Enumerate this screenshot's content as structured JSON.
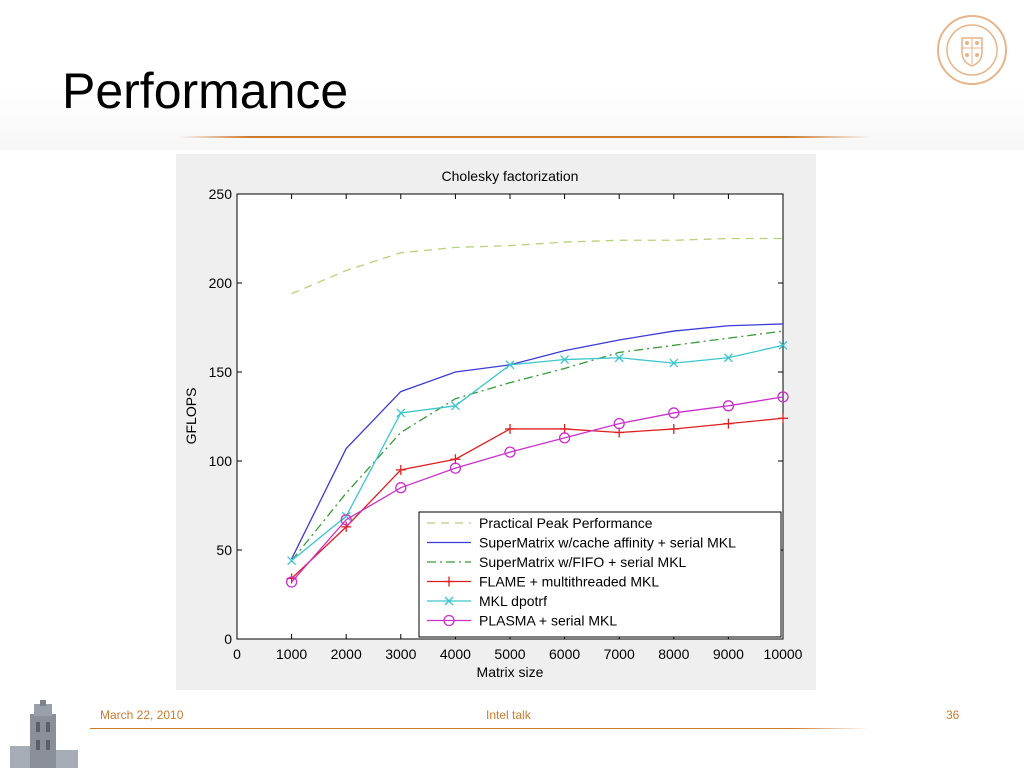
{
  "slide": {
    "title": "Performance",
    "footer_date": "March 22, 2010",
    "footer_center": "Intel talk",
    "page_number": "36",
    "logo_icon": "university-seal-icon",
    "tower_icon": "tower-image-icon",
    "accent_color": "#cc7a2e"
  },
  "chart_data": {
    "type": "line",
    "title": "Cholesky factorization",
    "xlabel": "Matrix size",
    "ylabel": "GFLOPS",
    "xlim": [
      0,
      10000
    ],
    "ylim": [
      0,
      250
    ],
    "xticks": [
      0,
      1000,
      2000,
      3000,
      4000,
      5000,
      6000,
      7000,
      8000,
      9000,
      10000
    ],
    "yticks": [
      0,
      50,
      100,
      150,
      200,
      250
    ],
    "grid": false,
    "legend_position": "bottom-right",
    "x": [
      1000,
      2000,
      3000,
      4000,
      5000,
      6000,
      7000,
      8000,
      9000,
      10000
    ],
    "series": [
      {
        "name": "Practical Peak Performance",
        "color": "#b5d27a",
        "dash": "8,6",
        "marker": "none",
        "values": [
          194,
          207,
          217,
          220,
          221,
          223,
          224,
          224,
          225,
          225
        ]
      },
      {
        "name": "SuperMatrix w/cache affinity + serial MKL",
        "color": "#3b3bd6",
        "dash": "",
        "marker": "none",
        "values": [
          45,
          107,
          139,
          150,
          154,
          162,
          168,
          173,
          176,
          177
        ]
      },
      {
        "name": "SuperMatrix w/FIFO + serial MKL",
        "color": "#3a9a3a",
        "dash": "9,4,2,4",
        "marker": "none",
        "values": [
          44,
          82,
          116,
          135,
          144,
          152,
          161,
          165,
          169,
          173
        ]
      },
      {
        "name": "FLAME + multithreaded MKL",
        "color": "#e02020",
        "dash": "",
        "marker": "plus",
        "values": [
          34,
          63,
          95,
          101,
          118,
          118,
          116,
          118,
          121,
          124
        ]
      },
      {
        "name": "MKL dpotrf",
        "color": "#3cc6cc",
        "dash": "",
        "marker": "x",
        "values": [
          44,
          69,
          127,
          131,
          154,
          157,
          158,
          155,
          158,
          165
        ]
      },
      {
        "name": "PLASMA + serial MKL",
        "color": "#cc30cc",
        "dash": "",
        "marker": "circle",
        "values": [
          32,
          67,
          85,
          96,
          105,
          113,
          121,
          127,
          131,
          136
        ]
      }
    ]
  }
}
